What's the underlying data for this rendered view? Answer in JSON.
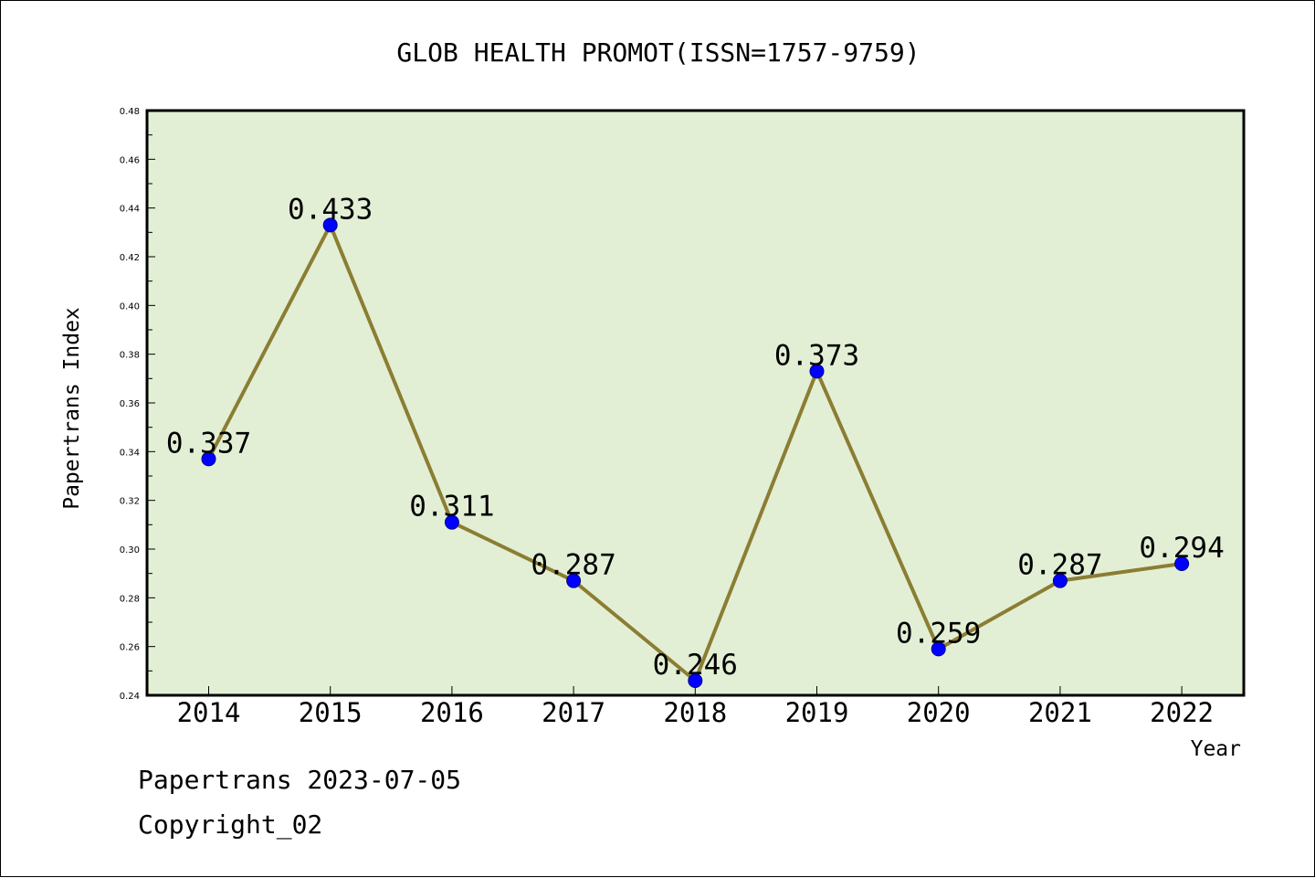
{
  "chart_data": {
    "type": "line",
    "title": "GLOB HEALTH PROMOT(ISSN=1757-9759)",
    "xlabel": "Year",
    "ylabel": "Papertrans Index",
    "categories": [
      "2014",
      "2015",
      "2016",
      "2017",
      "2018",
      "2019",
      "2020",
      "2021",
      "2022"
    ],
    "series": [
      {
        "values": [
          0.337,
          0.433,
          0.311,
          0.287,
          0.246,
          0.373,
          0.259,
          0.287,
          0.294
        ],
        "labels": [
          "0.337",
          "0.433",
          "0.311",
          "0.287",
          "0.246",
          "0.373",
          "0.259",
          "0.287",
          "0.294"
        ]
      }
    ],
    "ylim": [
      0.24,
      0.48
    ],
    "yticks": [
      "0.24",
      "0.26",
      "0.28",
      "0.30",
      "0.32",
      "0.34",
      "0.36",
      "0.38",
      "0.40",
      "0.42",
      "0.44",
      "0.46",
      "0.48"
    ],
    "grid": false,
    "colors": {
      "plot_background": "#e2efd5",
      "line": "#8b7d32",
      "marker": "#0000ff"
    }
  },
  "footer": {
    "line1": "Papertrans 2023-07-05",
    "line2": "Copyright_02"
  }
}
